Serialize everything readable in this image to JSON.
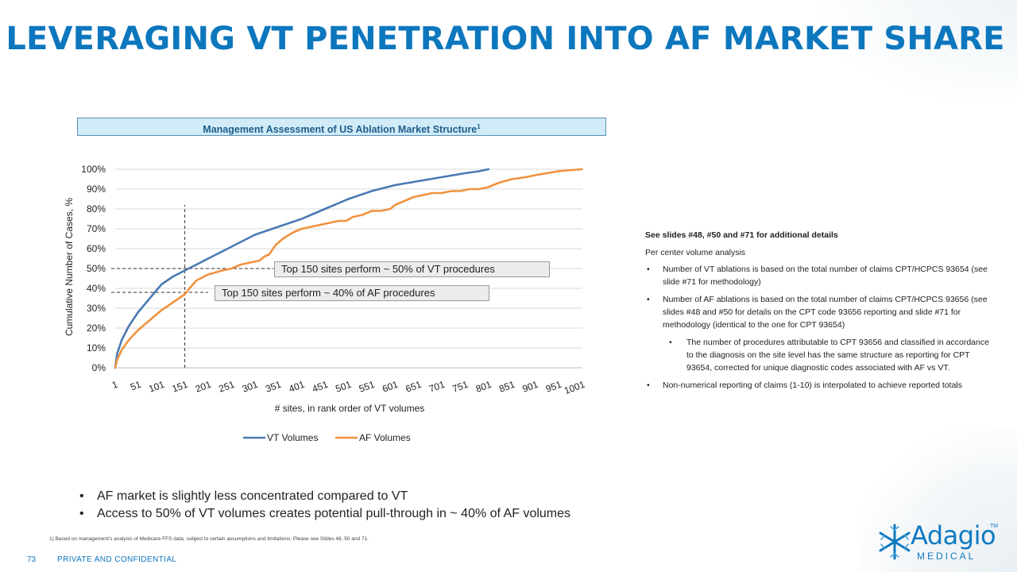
{
  "title": "LEVERAGING VT PENETRATION INTO AF MARKET SHARE",
  "chart_header": {
    "text": "Management Assessment of US Ablation Market Structure",
    "superscript": "1"
  },
  "chart_data": {
    "type": "line",
    "xlabel": "# sites, in rank order of VT volumes",
    "ylabel": "Cumulative Number of Cases, %",
    "xlim": [
      1,
      1001
    ],
    "ylim": [
      0,
      100
    ],
    "x_tick_labels": [
      "1",
      "51",
      "101",
      "151",
      "201",
      "251",
      "301",
      "351",
      "401",
      "451",
      "501",
      "551",
      "601",
      "651",
      "701",
      "751",
      "801",
      "851",
      "901",
      "951",
      "1001"
    ],
    "y_tick_labels": [
      "0%",
      "10%",
      "20%",
      "30%",
      "40%",
      "50%",
      "60%",
      "70%",
      "80%",
      "90%",
      "100%"
    ],
    "legend_position": "bottom",
    "series": [
      {
        "name": "VT Volumes",
        "color": "#4a7ab4",
        "x": [
          1,
          5,
          15,
          30,
          50,
          75,
          100,
          125,
          150,
          175,
          200,
          250,
          300,
          350,
          400,
          450,
          500,
          550,
          600,
          650,
          700,
          750,
          780,
          800
        ],
        "y": [
          0,
          7,
          14,
          21,
          28,
          35,
          42,
          46,
          49,
          52,
          55,
          61,
          67,
          71,
          75,
          80,
          85,
          89,
          92,
          94,
          96,
          98,
          99,
          100
        ]
      },
      {
        "name": "AF Volumes",
        "color": "#f0923e",
        "x": [
          1,
          5,
          15,
          30,
          50,
          75,
          100,
          125,
          150,
          160,
          175,
          200,
          230,
          250,
          270,
          290,
          310,
          320,
          330,
          345,
          360,
          380,
          400,
          420,
          440,
          460,
          480,
          495,
          510,
          530,
          550,
          570,
          590,
          600,
          620,
          640,
          660,
          680,
          700,
          720,
          740,
          760,
          780,
          800,
          820,
          850,
          880,
          900,
          950,
          1000
        ],
        "y": [
          0,
          4,
          9,
          14,
          19,
          24,
          29,
          33,
          37,
          40,
          44,
          47,
          49,
          50,
          52,
          53,
          54,
          56,
          57,
          62,
          65,
          68,
          70,
          71,
          72,
          73,
          74,
          74,
          76,
          77,
          79,
          79,
          80,
          82,
          84,
          86,
          87,
          88,
          88,
          89,
          89,
          90,
          90,
          91,
          93,
          95,
          96,
          97,
          99,
          100
        ]
      }
    ],
    "reference_lines": [
      {
        "type": "vertical",
        "x": 150,
        "y_from": 0,
        "y_to": 82
      },
      {
        "type": "horizontal",
        "y": 50,
        "x_from": 1,
        "x_to": 340
      },
      {
        "type": "horizontal",
        "y": 38,
        "x_from": 1,
        "x_to": 200
      }
    ],
    "annotations": [
      "Top 150 sites perform ~ 50% of VT procedures",
      "Top 150 sites perform ~ 40% of AF procedures"
    ]
  },
  "notes": {
    "heading": "See slides #48, #50 and #71 for additional details",
    "subheading": "Per center volume analysis",
    "items": [
      {
        "level": 1,
        "text": "Number of VT ablations is based on the total number of claims CPT/HCPCS 93654 (see slide #71 for methodology)"
      },
      {
        "level": 1,
        "text": "Number of AF ablations is based on the total number of claims CPT/HCPCS 93656 (see slides #48 and #50 for details on the CPT code 93656 reporting and slide #71 for methodology (identical to the one for CPT 93654)"
      },
      {
        "level": 2,
        "text": "The number of procedures attributable to CPT 93656 and classified in accordance to the diagnosis on the site level has the same structure as reporting for CPT 93654, corrected for unique diagnostic codes associated with AF vs VT."
      },
      {
        "level": 1,
        "text": "Non-numerical reporting of claims (1-10) is interpolated to achieve reported totals"
      }
    ]
  },
  "bullets": [
    "AF market is slightly less concentrated compared to VT",
    "Access to 50% of VT volumes creates potential pull-through in ~ 40% of AF volumes"
  ],
  "footnote": "1) Based on management's analysis of Medicare FFS data, subject to certain assumptions and limitations. Please see Slides 48, 50 and 71.",
  "footer": {
    "page_number": "73",
    "confidentiality": "PRIVATE AND CONFIDENTIAL"
  },
  "logo": {
    "name": "Adagio",
    "subtitle": "MEDICAL",
    "trademark": "TM",
    "color": "#0f7ac0"
  }
}
